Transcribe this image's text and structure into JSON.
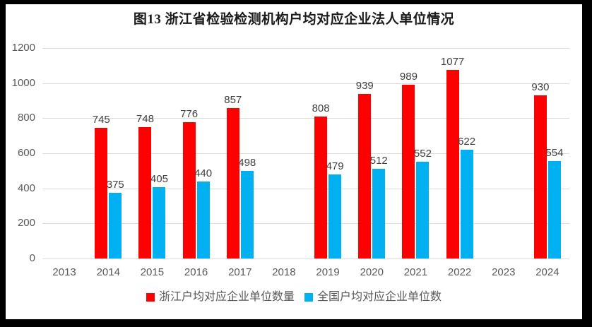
{
  "title": "图13 浙江省检验检测机构户均对应企业法人单位情况",
  "chart_data": {
    "type": "bar",
    "title": "图13 浙江省检验检测机构户均对应企业法人单位情况",
    "categories": [
      "2013",
      "2014",
      "2015",
      "2016",
      "2017",
      "2018",
      "2019",
      "2020",
      "2021",
      "2022",
      "2023",
      "2024"
    ],
    "series": [
      {
        "key": "zhejiang",
        "name": "浙江户均对应企业单位数量",
        "color": "#ff0000",
        "values": [
          null,
          745,
          748,
          776,
          857,
          null,
          808,
          939,
          989,
          1077,
          null,
          930
        ]
      },
      {
        "key": "national",
        "name": "全国户均对应企业单位数",
        "color": "#00b0f0",
        "values": [
          null,
          375,
          405,
          440,
          498,
          null,
          479,
          512,
          552,
          622,
          null,
          554
        ]
      }
    ],
    "xlabel": "",
    "ylabel": "",
    "ylim": [
      0,
      1200
    ],
    "yticks": [
      0,
      200,
      400,
      600,
      800,
      1000,
      1200
    ],
    "grid": "horizontal",
    "bar_labels": true,
    "legend_position": "bottom"
  },
  "colors": {
    "frame": "#000000",
    "background": "#ffffff",
    "gridline": "#dcdcdc",
    "axis_text": "#595959",
    "data_label_text": "#404040",
    "title_text": "#1a1a1a"
  }
}
